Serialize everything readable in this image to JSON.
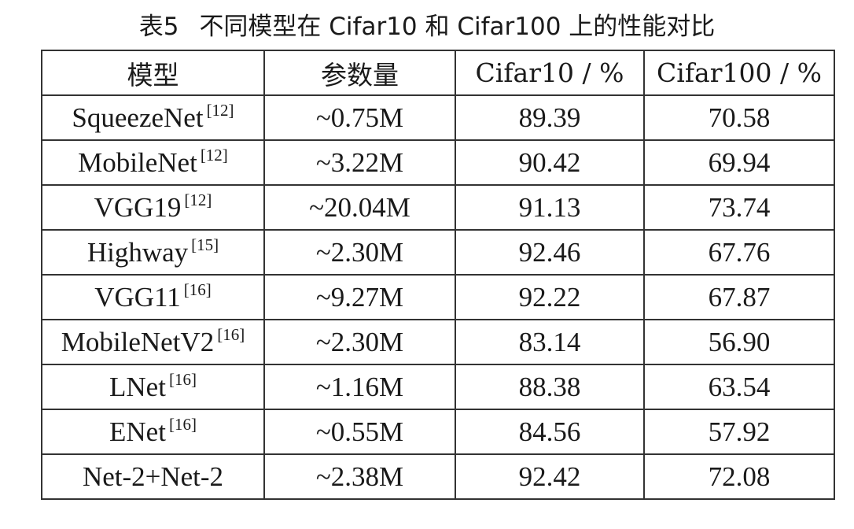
{
  "header": {
    "label": "表5",
    "title": "不同模型在 Cifar10 和 Cifar100 上的性能对比"
  },
  "table": {
    "columns": [
      "模型",
      "参数量",
      "Cifar10 / %",
      "Cifar100 / %"
    ],
    "rows": [
      {
        "model": "SqueezeNet",
        "ref": "[12]",
        "params": "~0.75M",
        "cifar10": "89.39",
        "cifar100": "70.58"
      },
      {
        "model": "MobileNet",
        "ref": "[12]",
        "params": "~3.22M",
        "cifar10": "90.42",
        "cifar100": "69.94"
      },
      {
        "model": "VGG19",
        "ref": "[12]",
        "params": "~20.04M",
        "cifar10": "91.13",
        "cifar100": "73.74"
      },
      {
        "model": "Highway",
        "ref": "[15]",
        "params": "~2.30M",
        "cifar10": "92.46",
        "cifar100": "67.76"
      },
      {
        "model": "VGG11",
        "ref": "[16]",
        "params": "~9.27M",
        "cifar10": "92.22",
        "cifar100": "67.87"
      },
      {
        "model": "MobileNetV2",
        "ref": "[16]",
        "params": "~2.30M",
        "cifar10": "83.14",
        "cifar100": "56.90"
      },
      {
        "model": "LNet",
        "ref": "[16]",
        "params": "~1.16M",
        "cifar10": "88.38",
        "cifar100": "63.54"
      },
      {
        "model": "ENet",
        "ref": "[16]",
        "params": "~0.55M",
        "cifar10": "84.56",
        "cifar100": "57.92"
      },
      {
        "model": "Net-2+Net-2",
        "params": "~2.38M",
        "cifar10": "92.42",
        "cifar100": "72.08"
      }
    ]
  }
}
